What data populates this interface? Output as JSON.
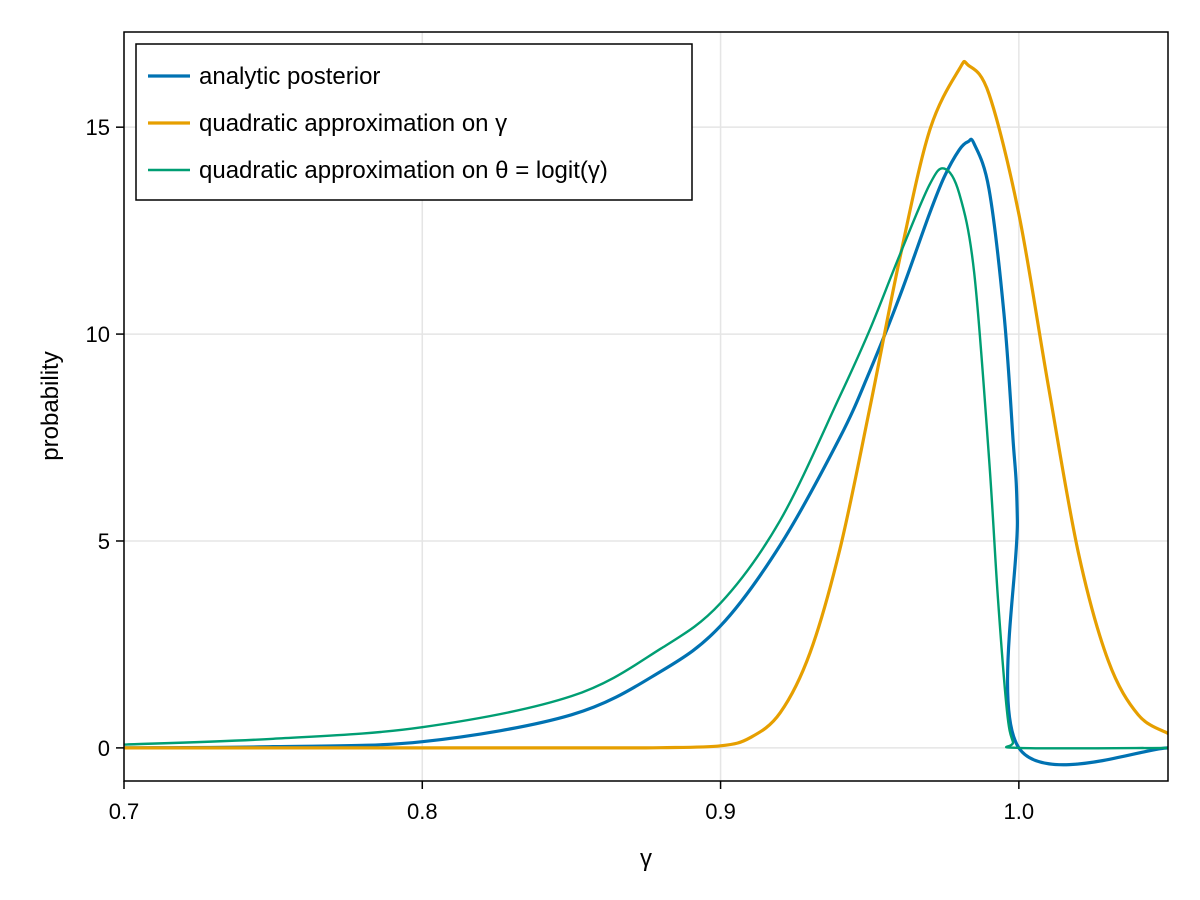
{
  "chart_data": {
    "type": "line",
    "title": "",
    "xlabel": "γ",
    "ylabel": "probability",
    "xlim": [
      0.7,
      1.05
    ],
    "ylim": [
      -0.8,
      17.3
    ],
    "xticks": [
      0.7,
      0.8,
      0.9,
      1.0
    ],
    "xtick_labels": [
      "0.7",
      "0.8",
      "0.9",
      "1.0"
    ],
    "yticks": [
      0,
      5,
      10,
      15
    ],
    "ytick_labels": [
      "0",
      "5",
      "10",
      "15"
    ],
    "grid": true,
    "legend_position": "top-left",
    "series": [
      {
        "name": "analytic posterior",
        "color": "#0072b2",
        "x": [
          0.7,
          0.75,
          0.8,
          0.85,
          0.88,
          0.9,
          0.92,
          0.94,
          0.95,
          0.96,
          0.97,
          0.975,
          0.98,
          0.983,
          0.985,
          0.99,
          0.995,
          0.998,
          0.9995,
          1.0,
          1.05
        ],
        "y": [
          0.0,
          0.03,
          0.15,
          0.8,
          1.85,
          2.95,
          4.9,
          7.5,
          9.1,
          10.9,
          12.9,
          13.8,
          14.45,
          14.65,
          14.6,
          13.5,
          10.5,
          7.5,
          5.5,
          0.0,
          0.0
        ]
      },
      {
        "name": "quadratic approximation on γ",
        "color": "#e69f00",
        "x": [
          0.7,
          0.85,
          0.88,
          0.9,
          0.91,
          0.92,
          0.93,
          0.94,
          0.95,
          0.96,
          0.97,
          0.98,
          0.983,
          0.99,
          1.0,
          1.01,
          1.02,
          1.03,
          1.04,
          1.05
        ],
        "y": [
          0.0,
          0.0,
          0.005,
          0.05,
          0.25,
          0.85,
          2.3,
          4.8,
          8.2,
          11.8,
          14.9,
          16.4,
          16.5,
          15.8,
          12.9,
          8.7,
          4.7,
          2.1,
          0.8,
          0.35
        ]
      },
      {
        "name": "quadratic approximation on θ = logit(γ)",
        "color": "#009e73",
        "x": [
          0.7,
          0.75,
          0.8,
          0.85,
          0.88,
          0.9,
          0.92,
          0.94,
          0.95,
          0.96,
          0.97,
          0.975,
          0.98,
          0.985,
          0.99,
          0.993,
          0.996,
          0.998,
          1.0,
          1.05
        ],
        "y": [
          0.08,
          0.22,
          0.5,
          1.25,
          2.4,
          3.5,
          5.5,
          8.5,
          10.1,
          11.9,
          13.6,
          14.0,
          13.4,
          11.5,
          7.0,
          3.6,
          0.9,
          0.15,
          0.0,
          0.0
        ]
      }
    ]
  }
}
